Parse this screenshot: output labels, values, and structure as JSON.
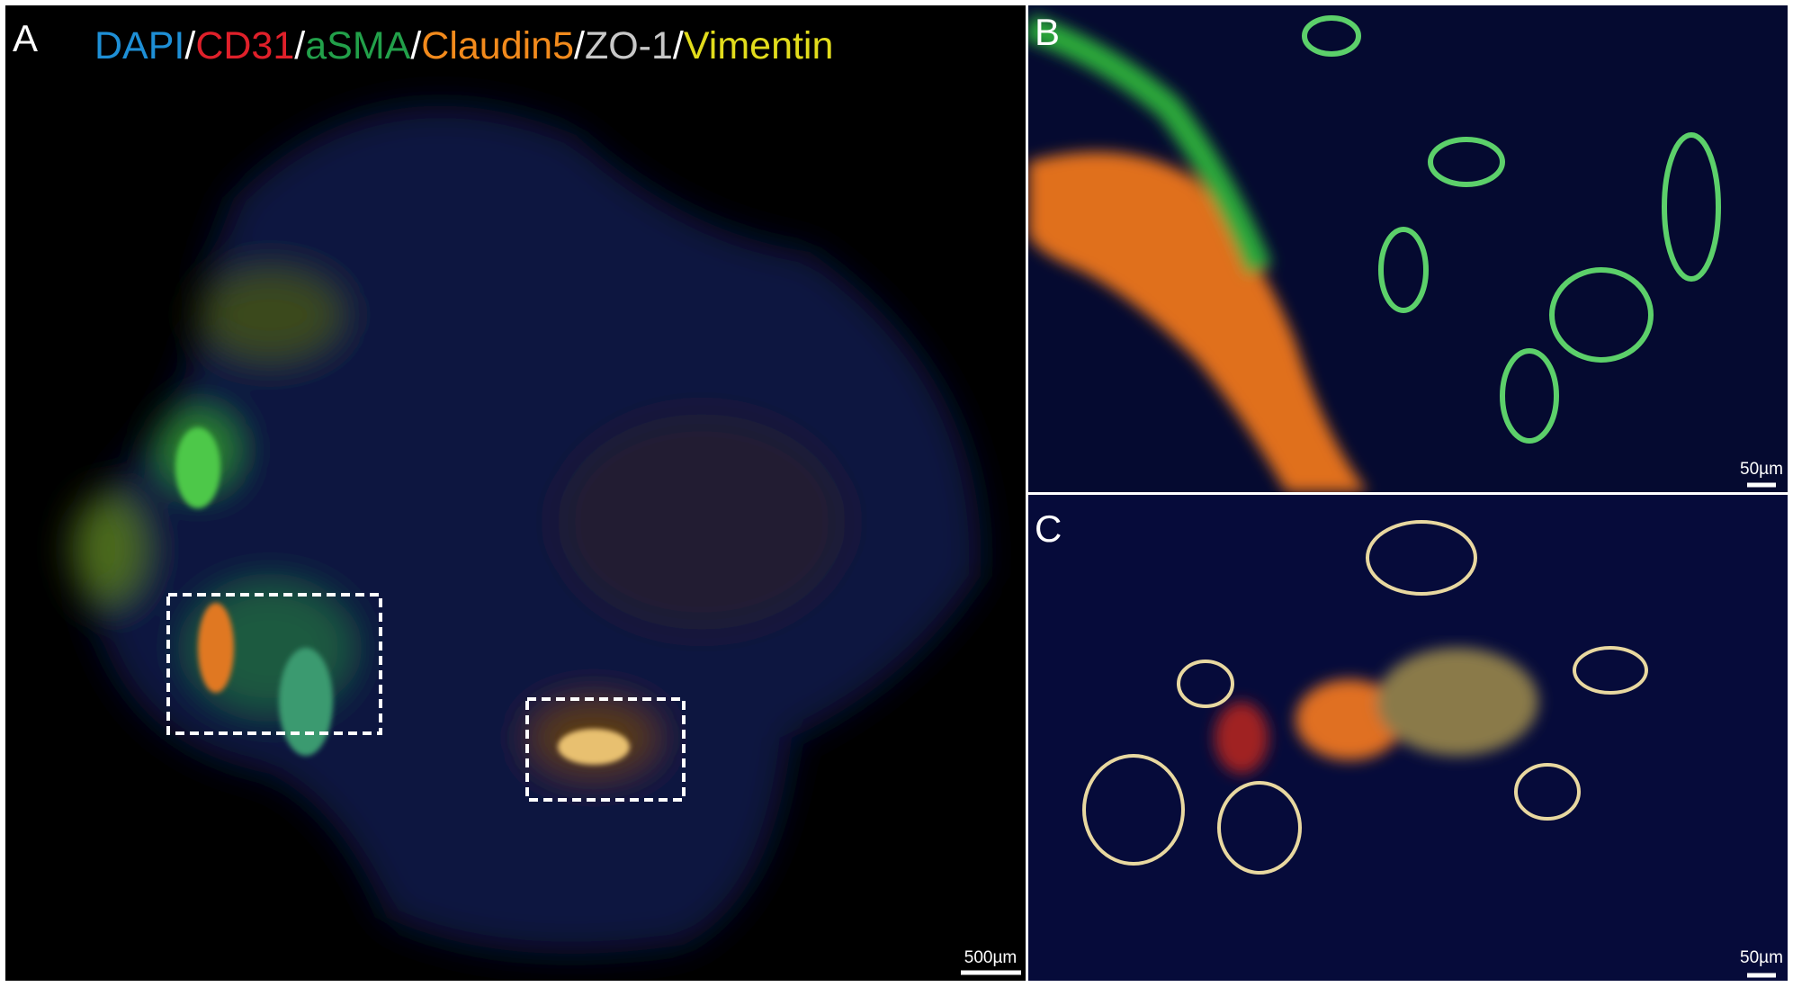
{
  "panels": [
    {
      "label": "A",
      "scale_bar": "500µm"
    },
    {
      "label": "B",
      "scale_bar": "50µm"
    },
    {
      "label": "C",
      "scale_bar": "50µm"
    }
  ],
  "legend": [
    {
      "text": "DAPI",
      "color": "#1e8fd6"
    },
    {
      "text": "/",
      "color": "#ffffff"
    },
    {
      "text": "CD31",
      "color": "#e0202a"
    },
    {
      "text": "/",
      "color": "#ffffff"
    },
    {
      "text": "aSMA",
      "color": "#22a04a"
    },
    {
      "text": "/",
      "color": "#ffffff"
    },
    {
      "text": "Claudin5",
      "color": "#f28a1c"
    },
    {
      "text": "/",
      "color": "#ffffff"
    },
    {
      "text": "ZO-1",
      "color": "#c8c8c8"
    },
    {
      "text": "/",
      "color": "#ffffff"
    },
    {
      "text": "Vimentin",
      "color": "#e2dc1c"
    }
  ]
}
